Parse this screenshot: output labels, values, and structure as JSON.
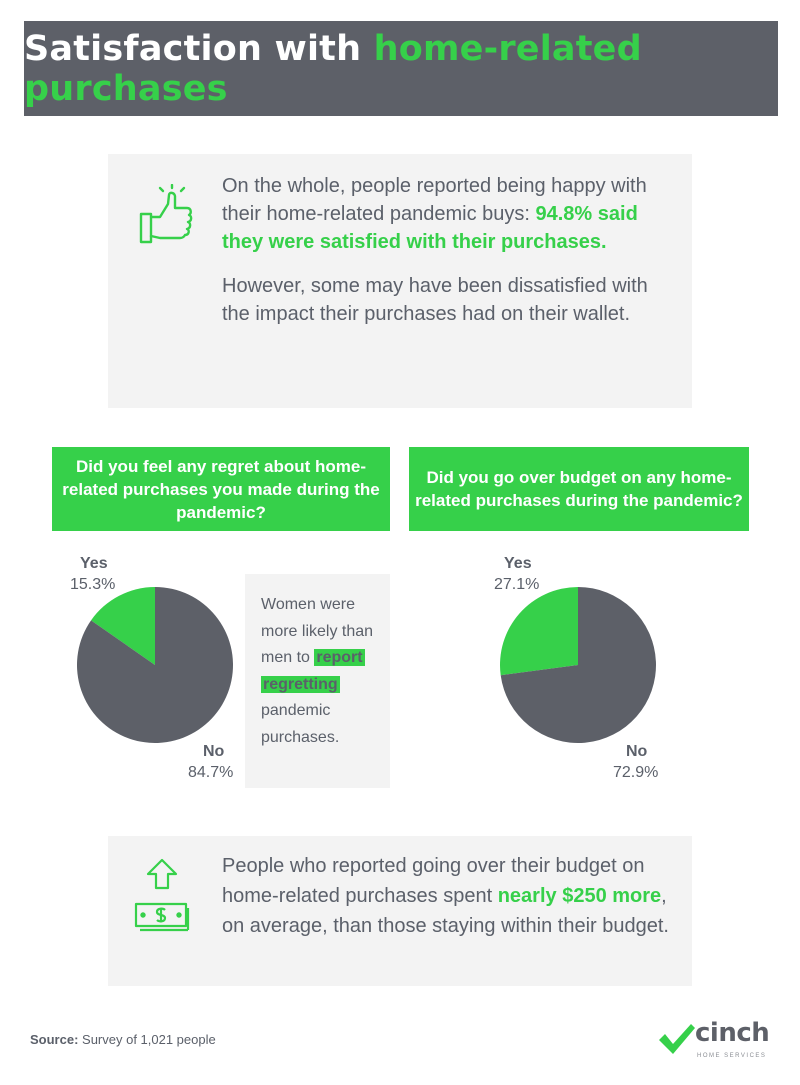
{
  "header": {
    "title_prefix": "Satisfaction with ",
    "title_highlight": "home-related purchases"
  },
  "intro": {
    "line1": "On the whole, people reported being happy with their home-related pandemic buys: ",
    "highlight": "94.8% said they were satisfied with their purchases.",
    "para2": "However, some may have been dissatisfied with the impact their purchases had on their wallet.",
    "icon": "thumbs-up-icon"
  },
  "questions": {
    "q1": "Did you feel any regret about home-related purchases you made during the pandemic?",
    "q2": "Did you go over budget on any home-related purchases during the pandemic?"
  },
  "note": {
    "before": "Women were more likely than men to ",
    "highlight1": "report",
    "highlight2": "regretting",
    "after": " pandemic purchases."
  },
  "bottom": {
    "before": "People who reported going over their budget on home-related purchases spent ",
    "highlight": "nearly $250 more",
    "after": ", on average, than those staying within their budget.",
    "icon": "money-up-arrow-icon"
  },
  "source": {
    "label": "Source:",
    "text": " Survey of 1,021 people"
  },
  "logo": {
    "word": "cinch",
    "sub": "HOME SERVICES"
  },
  "colors": {
    "green": "#36d04a",
    "gray": "#5d6068",
    "panel": "#f3f3f3"
  },
  "chart_data": [
    {
      "type": "pie",
      "slices": [
        {
          "label": "Yes",
          "value": 15.3,
          "display": "15.3%",
          "color": "#36d04a"
        },
        {
          "label": "No",
          "value": 84.7,
          "display": "84.7%",
          "color": "#5d6068"
        }
      ]
    },
    {
      "type": "pie",
      "slices": [
        {
          "label": "Yes",
          "value": 27.1,
          "display": "27.1%",
          "color": "#36d04a"
        },
        {
          "label": "No",
          "value": 72.9,
          "display": "72.9%",
          "color": "#5d6068"
        }
      ]
    }
  ]
}
